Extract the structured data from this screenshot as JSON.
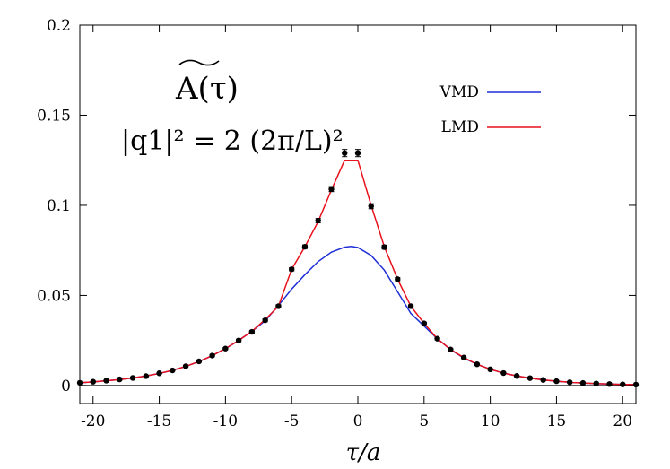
{
  "chart_data": {
    "type": "line",
    "title": "",
    "xlabel": "τ/a",
    "ylabel": "",
    "xlim": [
      -21,
      21
    ],
    "ylim": [
      -0.01,
      0.2
    ],
    "x_ticks": [
      -20,
      -15,
      -10,
      -5,
      0,
      5,
      10,
      15,
      20
    ],
    "x_tick_labels": [
      "-20",
      "-15",
      "-10",
      "-5",
      "0",
      "5",
      "10",
      "15",
      "20"
    ],
    "y_ticks": [
      0,
      0.05,
      0.1,
      0.15,
      0.2
    ],
    "y_tick_labels": [
      "0",
      "0.05",
      "0.1",
      "0.15",
      "0.2"
    ],
    "grid": false,
    "zero_line": true,
    "legend_position": "top-right",
    "annotations": {
      "function_label": "A(τ)",
      "momentum_label": "|q1|² = 2 (2π/L)²"
    },
    "series": [
      {
        "name": "VMD",
        "kind": "line",
        "color": "#1f2fd6",
        "x": [
          -21,
          -20,
          -19,
          -18,
          -17,
          -16,
          -15,
          -14,
          -13,
          -12,
          -11,
          -10,
          -9,
          -8,
          -7,
          -6,
          -5,
          -4,
          -3,
          -2,
          -1,
          -0.5,
          0,
          1,
          2,
          3,
          4,
          5,
          6,
          7,
          8,
          9,
          10,
          11,
          12,
          13,
          14,
          15,
          16,
          17,
          18,
          19,
          20,
          21
        ],
        "y": [
          0.0015,
          0.002,
          0.0026,
          0.0033,
          0.0042,
          0.0053,
          0.0067,
          0.0084,
          0.0106,
          0.0133,
          0.0166,
          0.0205,
          0.025,
          0.0301,
          0.0359,
          0.0444,
          0.0535,
          0.0615,
          0.0688,
          0.074,
          0.0768,
          0.0772,
          0.0766,
          0.0722,
          0.064,
          0.052,
          0.04,
          0.033,
          0.026,
          0.02,
          0.0152,
          0.0118,
          0.009,
          0.0069,
          0.0053,
          0.0041,
          0.0031,
          0.0024,
          0.0018,
          0.0014,
          0.001,
          0.0008,
          0.0006,
          0.0005
        ]
      },
      {
        "name": "LMD",
        "kind": "line",
        "color": "#e8101a",
        "x": [
          -21,
          -20,
          -19,
          -18,
          -17,
          -16,
          -15,
          -14,
          -13,
          -12,
          -11,
          -10,
          -9,
          -8,
          -7,
          -6,
          -5,
          -4,
          -3,
          -2,
          -1,
          0,
          1,
          2,
          3,
          4,
          5,
          6,
          7,
          8,
          9,
          10,
          11,
          12,
          13,
          14,
          15,
          16,
          17,
          18,
          19,
          20,
          21
        ],
        "y": [
          0.0015,
          0.002,
          0.0026,
          0.0033,
          0.0042,
          0.0053,
          0.0067,
          0.0084,
          0.0106,
          0.0133,
          0.0166,
          0.0205,
          0.025,
          0.0301,
          0.0366,
          0.044,
          0.0645,
          0.077,
          0.091,
          0.1085,
          0.125,
          0.125,
          0.1,
          0.077,
          0.059,
          0.044,
          0.0345,
          0.026,
          0.02,
          0.0155,
          0.0118,
          0.009,
          0.0069,
          0.0053,
          0.0041,
          0.0031,
          0.0024,
          0.0018,
          0.0014,
          0.0011,
          0.0008,
          0.0006,
          0.0005
        ]
      },
      {
        "name": "",
        "kind": "points",
        "color": "#000000",
        "x": [
          -21,
          -20,
          -19,
          -18,
          -17,
          -16,
          -15,
          -14,
          -13,
          -12,
          -11,
          -10,
          -9,
          -8,
          -7,
          -6,
          -5,
          -4,
          -3,
          -2,
          -1,
          0,
          1,
          2,
          3,
          4,
          5,
          6,
          7,
          8,
          9,
          10,
          11,
          12,
          13,
          14,
          15,
          16,
          17,
          18,
          19,
          20,
          21
        ],
        "y": [
          0.0015,
          0.0021,
          0.0027,
          0.0034,
          0.0042,
          0.0052,
          0.0068,
          0.0084,
          0.0107,
          0.0134,
          0.0166,
          0.0205,
          0.025,
          0.0298,
          0.0362,
          0.044,
          0.0645,
          0.077,
          0.0915,
          0.109,
          0.129,
          0.129,
          0.0995,
          0.0768,
          0.059,
          0.044,
          0.0345,
          0.026,
          0.02,
          0.0155,
          0.0118,
          0.009,
          0.0069,
          0.0053,
          0.0041,
          0.0031,
          0.0024,
          0.0018,
          0.0014,
          0.0011,
          0.0008,
          0.0006,
          0.0005
        ],
        "err": [
          0.0002,
          0.0002,
          0.0002,
          0.0003,
          0.0003,
          0.0003,
          0.0004,
          0.0004,
          0.0005,
          0.0005,
          0.0006,
          0.0006,
          0.0007,
          0.0007,
          0.0008,
          0.0008,
          0.0009,
          0.001,
          0.0012,
          0.0014,
          0.002,
          0.002,
          0.0014,
          0.0011,
          0.0009,
          0.0008,
          0.0007,
          0.0006,
          0.0006,
          0.0005,
          0.0005,
          0.0004,
          0.0004,
          0.0004,
          0.0003,
          0.0003,
          0.0003,
          0.0002,
          0.0002,
          0.0002,
          0.0002,
          0.0002,
          0.0002
        ]
      }
    ]
  }
}
